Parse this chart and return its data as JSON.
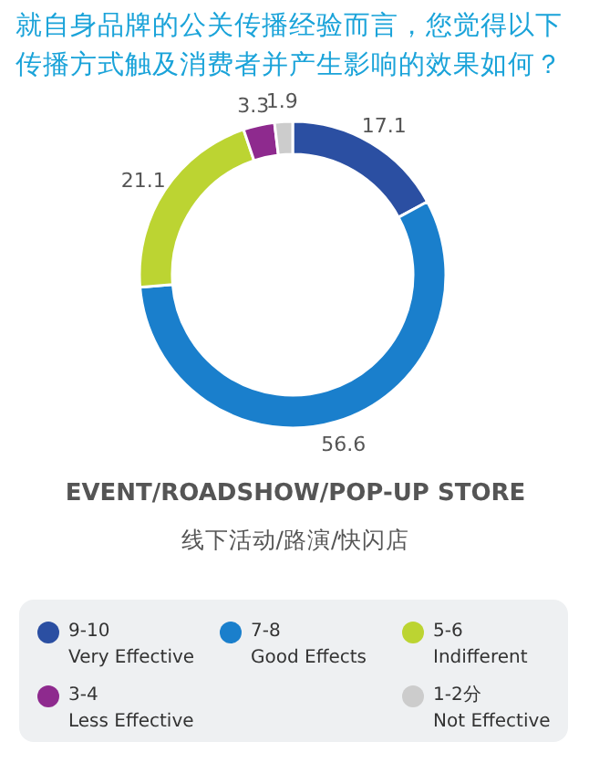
{
  "chart_data": {
    "type": "donut",
    "title": "就自身品牌的公关传播经验而言，您觉得以下传播方式触及消费者并产生影响的效果如何？",
    "xlabel": "EVENT/ROADSHOW/POP-UP STORE",
    "annotations": [
      "线下活动/路演/快闪店"
    ],
    "categories": [
      "9-10 Very Effective",
      "7-8 Good Effects",
      "5-6 Indifferent",
      "3-4 Less Effective",
      "1-2分 Not Effective"
    ],
    "values": [
      17.1,
      56.6,
      21.1,
      3.3,
      1.9
    ],
    "colors": [
      "#2b4fa2",
      "#1a7fcc",
      "#bcd432",
      "#8e2a8e",
      "#cccccc"
    ],
    "data_labels": true,
    "legend": "bottom"
  }
}
